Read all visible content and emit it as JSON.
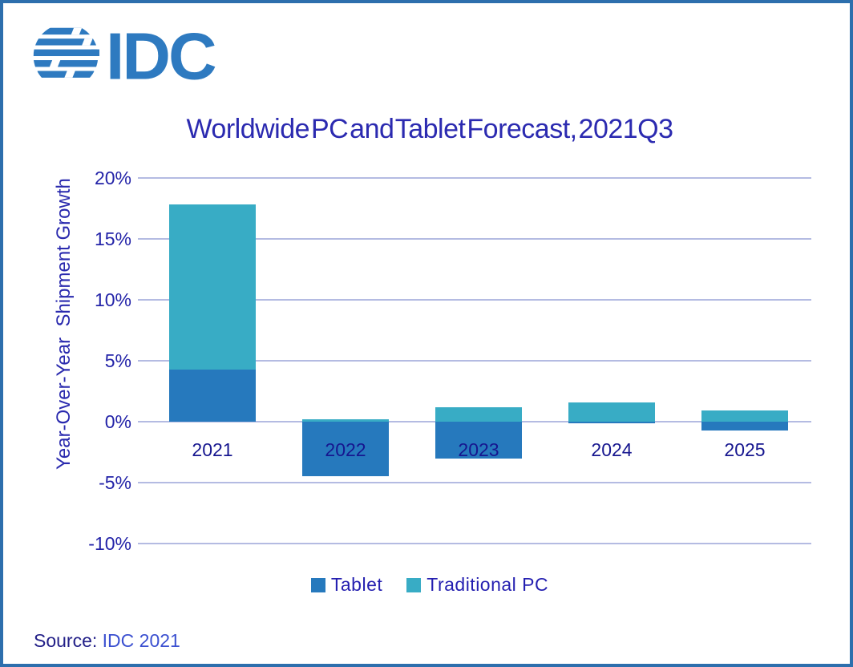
{
  "logo": {
    "text": "IDC",
    "icon": "idc-globe-icon",
    "color": "#2e7ac0"
  },
  "title": "Worldwide PC and Tablet Forecast, 2021Q3",
  "chart_data": {
    "type": "bar",
    "stacked": true,
    "categories": [
      "2021",
      "2022",
      "2023",
      "2024",
      "2025"
    ],
    "series": [
      {
        "name": "Tablet",
        "color": "#2679bd",
        "values": [
          4.3,
          -4.5,
          -3.0,
          -0.1,
          -0.7
        ]
      },
      {
        "name": "Traditional PC",
        "color": "#38acc5",
        "values": [
          13.5,
          0.2,
          1.2,
          1.6,
          0.9
        ]
      }
    ],
    "title": "Worldwide PC and Tablet Forecast, 2021Q3",
    "xlabel": "",
    "ylabel": "Year-Over-Year  Shipment Growth",
    "yticks": [
      20,
      15,
      10,
      5,
      0,
      -5,
      -10
    ],
    "ytick_labels": [
      "20%",
      "15%",
      "10%",
      "5%",
      "0%",
      "-5%",
      "-10%"
    ],
    "ylim": [
      -10,
      20
    ],
    "grid": true,
    "gridline_color": "#b4bbe2",
    "legend_position": "bottom"
  },
  "source": {
    "prefix": "Source:",
    "value": " IDC 2021"
  }
}
